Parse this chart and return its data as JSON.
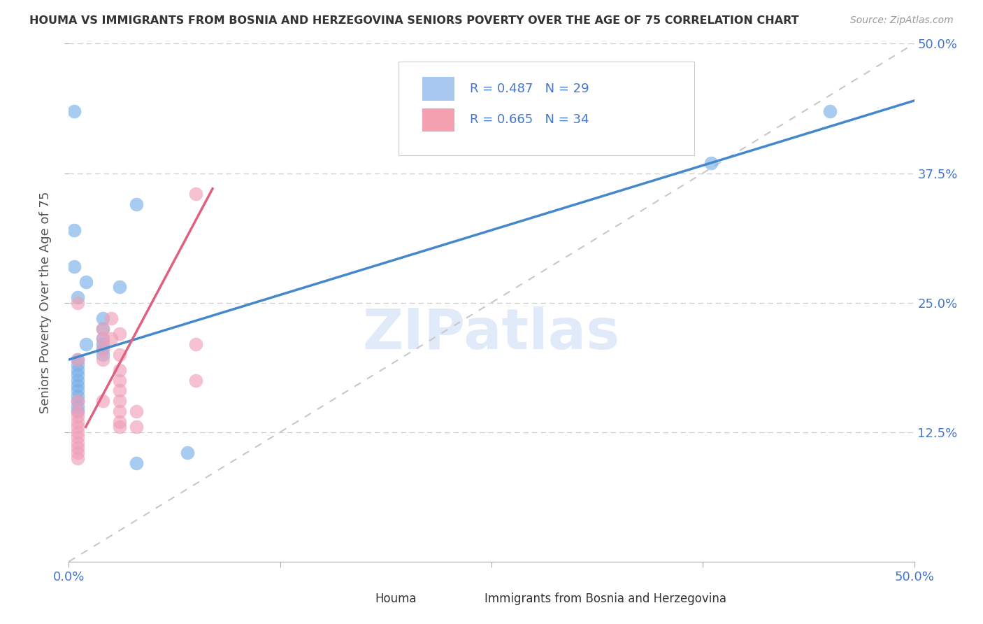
{
  "title": "HOUMA VS IMMIGRANTS FROM BOSNIA AND HERZEGOVINA SENIORS POVERTY OVER THE AGE OF 75 CORRELATION CHART",
  "source": "Source: ZipAtlas.com",
  "ylabel": "Seniors Poverty Over the Age of 75",
  "xlim": [
    0,
    0.5
  ],
  "ylim": [
    0,
    0.5
  ],
  "xtick_labels_edge": [
    "0.0%",
    "50.0%"
  ],
  "xtick_values_edge": [
    0.0,
    0.5
  ],
  "xtick_minor_values": [
    0.125,
    0.25,
    0.375
  ],
  "ytick_labels": [
    "12.5%",
    "25.0%",
    "37.5%",
    "50.0%"
  ],
  "ytick_values": [
    0.125,
    0.25,
    0.375,
    0.5
  ],
  "watermark": "ZIPatlas",
  "legend1_label": "R = 0.487   N = 29",
  "legend2_label": "R = 0.665   N = 34",
  "legend1_color": "#a8c8f0",
  "legend2_color": "#f4a0b0",
  "line1_color": "#4488cc",
  "line2_color": "#e06080",
  "diagonal_color": "#c8c8c8",
  "houma_color": "#7ab0e8",
  "bosnia_color": "#f0a0b8",
  "houma_scatter": [
    [
      0.003,
      0.435
    ],
    [
      0.003,
      0.32
    ],
    [
      0.04,
      0.345
    ],
    [
      0.003,
      0.285
    ],
    [
      0.01,
      0.27
    ],
    [
      0.005,
      0.255
    ],
    [
      0.03,
      0.265
    ],
    [
      0.02,
      0.235
    ],
    [
      0.02,
      0.225
    ],
    [
      0.02,
      0.215
    ],
    [
      0.01,
      0.21
    ],
    [
      0.02,
      0.21
    ],
    [
      0.02,
      0.205
    ],
    [
      0.02,
      0.2
    ],
    [
      0.005,
      0.195
    ],
    [
      0.005,
      0.19
    ],
    [
      0.005,
      0.185
    ],
    [
      0.005,
      0.18
    ],
    [
      0.005,
      0.175
    ],
    [
      0.005,
      0.17
    ],
    [
      0.005,
      0.165
    ],
    [
      0.005,
      0.16
    ],
    [
      0.005,
      0.155
    ],
    [
      0.005,
      0.15
    ],
    [
      0.005,
      0.145
    ],
    [
      0.07,
      0.105
    ],
    [
      0.04,
      0.095
    ],
    [
      0.38,
      0.385
    ],
    [
      0.45,
      0.435
    ]
  ],
  "bosnia_scatter": [
    [
      0.075,
      0.355
    ],
    [
      0.075,
      0.21
    ],
    [
      0.075,
      0.175
    ],
    [
      0.005,
      0.25
    ],
    [
      0.025,
      0.235
    ],
    [
      0.02,
      0.225
    ],
    [
      0.03,
      0.22
    ],
    [
      0.025,
      0.215
    ],
    [
      0.02,
      0.215
    ],
    [
      0.02,
      0.205
    ],
    [
      0.03,
      0.2
    ],
    [
      0.02,
      0.195
    ],
    [
      0.005,
      0.195
    ],
    [
      0.03,
      0.185
    ],
    [
      0.03,
      0.175
    ],
    [
      0.03,
      0.165
    ],
    [
      0.03,
      0.155
    ],
    [
      0.02,
      0.155
    ],
    [
      0.03,
      0.145
    ],
    [
      0.04,
      0.145
    ],
    [
      0.04,
      0.13
    ],
    [
      0.03,
      0.135
    ],
    [
      0.03,
      0.13
    ],
    [
      0.005,
      0.155
    ],
    [
      0.005,
      0.145
    ],
    [
      0.005,
      0.14
    ],
    [
      0.005,
      0.135
    ],
    [
      0.005,
      0.13
    ],
    [
      0.005,
      0.125
    ],
    [
      0.005,
      0.12
    ],
    [
      0.005,
      0.115
    ],
    [
      0.005,
      0.11
    ],
    [
      0.005,
      0.105
    ],
    [
      0.005,
      0.1
    ]
  ],
  "houma_line": [
    [
      0.0,
      0.195
    ],
    [
      0.5,
      0.445
    ]
  ],
  "bosnia_line": [
    [
      0.01,
      0.13
    ],
    [
      0.085,
      0.36
    ]
  ],
  "diagonal_line": [
    [
      0.0,
      0.0
    ],
    [
      0.5,
      0.5
    ]
  ]
}
